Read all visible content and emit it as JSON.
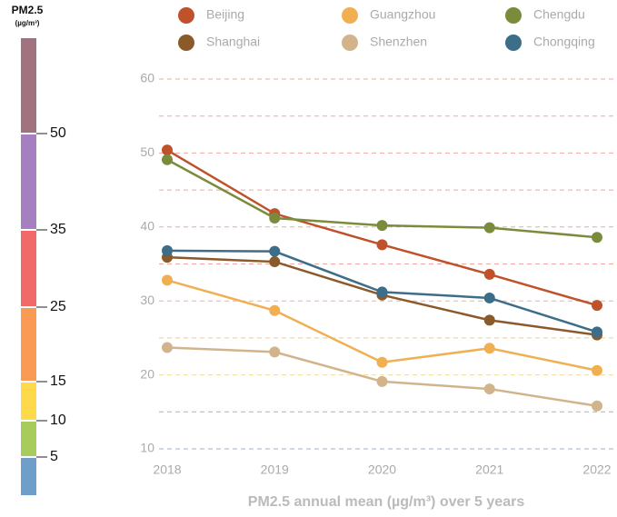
{
  "chart_data": {
    "type": "line",
    "xlabel": "PM2.5 annual mean (µg/m³) over 5 years",
    "x": [
      2018,
      2019,
      2020,
      2021,
      2022
    ],
    "xlim": [
      2018,
      2022
    ],
    "xticks": [
      2018,
      2019,
      2020,
      2021,
      2022
    ],
    "ylim": [
      10,
      60
    ],
    "yticks": [
      10,
      20,
      30,
      40,
      50,
      60
    ],
    "grid_lines": [
      10,
      15,
      20,
      25,
      30,
      35,
      40,
      45,
      50,
      55,
      60
    ],
    "grid_colors": [
      "#9fb2c6",
      "#9fb2c6",
      "#f3dc9a",
      "#f3c98f",
      "#eeb0a8",
      "#eea8a0",
      "#eea8a0",
      "#eea8a0",
      "#eea8a0",
      "#eea8a0",
      "#eea8a0"
    ],
    "series": [
      {
        "name": "Beijing",
        "color": "#c0522b",
        "values": [
          50.4,
          41.8,
          37.6,
          33.6,
          29.4
        ]
      },
      {
        "name": "Guangzhou",
        "color": "#f0b052",
        "values": [
          32.8,
          28.7,
          21.7,
          23.6,
          20.6
        ]
      },
      {
        "name": "Chengdu",
        "color": "#7a8c3c",
        "values": [
          49.1,
          41.2,
          40.2,
          39.9,
          38.6
        ]
      },
      {
        "name": "Shanghai",
        "color": "#8b5a2b",
        "values": [
          35.9,
          35.3,
          30.8,
          27.4,
          25.4
        ]
      },
      {
        "name": "Shenzhen",
        "color": "#d2b48c",
        "values": [
          23.7,
          23.1,
          19.1,
          18.1,
          15.8
        ]
      },
      {
        "name": "Chongqing",
        "color": "#3c6e8a",
        "values": [
          36.8,
          36.7,
          31.2,
          30.4,
          25.8
        ]
      }
    ],
    "colorbar": {
      "title": "PM2.5",
      "unit": "(µg/m³)",
      "ticks": [
        5,
        10,
        15,
        25,
        35,
        50
      ],
      "colors": [
        "#6f9fc9",
        "#a8cc5c",
        "#fed94a",
        "#f99a55",
        "#f06a6a",
        "#a57fc0",
        "#a0747f"
      ]
    }
  }
}
